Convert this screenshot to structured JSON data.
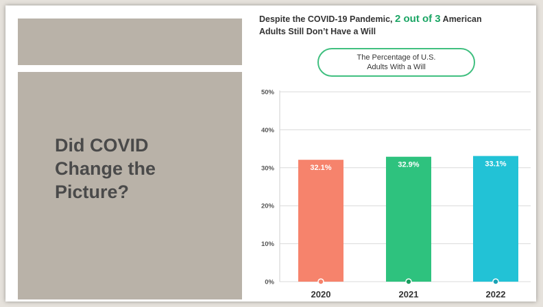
{
  "slide": {
    "heading_lines": [
      "Did COVID",
      "Change the",
      "Picture?"
    ]
  },
  "chart_data": {
    "type": "bar",
    "title_parts": [
      "Despite the COVID-19 Pandemic, ",
      "2 out of 3",
      " American",
      "Adults Still Don’t Have a Will"
    ],
    "subtitle_lines": [
      "The Percentage of U.S.",
      "Adults With a Will"
    ],
    "categories": [
      "2020",
      "2021",
      "2022"
    ],
    "values": [
      32.1,
      32.9,
      33.1
    ],
    "data_labels": [
      "32.1%",
      "32.9%",
      "33.1%"
    ],
    "ylim": [
      0,
      50
    ],
    "y_ticks": [
      0,
      10,
      20,
      30,
      40,
      50
    ],
    "y_tick_labels": [
      "0%",
      "10%",
      "20%",
      "30%",
      "40%",
      "50%"
    ],
    "grid": true,
    "colors": {
      "bars": [
        "#f6836c",
        "#2ec27e",
        "#22c2d6"
      ],
      "markers": [
        "#f6836c",
        "#1a9e60",
        "#1aa3b5"
      ],
      "highlight": "#1aa564",
      "pill_border": "#3fbf7f"
    }
  }
}
